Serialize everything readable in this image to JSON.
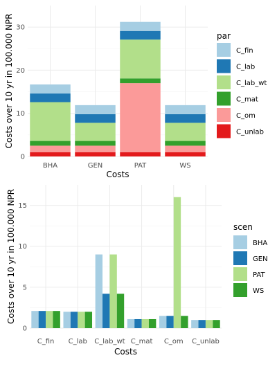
{
  "colors": {
    "C_fin": "#a6cee3",
    "C_lab": "#1f78b4",
    "C_lab_wt": "#b2df8a",
    "C_mat": "#33a02c",
    "C_om": "#fb9a99",
    "C_unlab": "#e31a1c",
    "BHA": "#a6cee3",
    "GEN": "#1f78b4",
    "PAT": "#b2df8a",
    "WS": "#33a02c"
  },
  "chart_data": [
    {
      "type": "bar",
      "stacked": true,
      "categories": [
        "BHA",
        "GEN",
        "PAT",
        "WS"
      ],
      "series": [
        {
          "name": "C_unlab",
          "values": [
            1.0,
            1.0,
            1.0,
            1.0
          ]
        },
        {
          "name": "C_om",
          "values": [
            1.5,
            1.5,
            16.0,
            1.5
          ]
        },
        {
          "name": "C_mat",
          "values": [
            1.1,
            1.1,
            1.1,
            1.1
          ]
        },
        {
          "name": "C_lab_wt",
          "values": [
            9.0,
            4.2,
            9.0,
            4.2
          ]
        },
        {
          "name": "C_lab",
          "values": [
            2.0,
            2.0,
            2.0,
            2.0
          ]
        },
        {
          "name": "C_fin",
          "values": [
            2.1,
            2.1,
            2.1,
            2.1
          ]
        }
      ],
      "xlabel": "Costs",
      "ylabel": "Costs over 10 yr in 100.000 NPR",
      "ylim": [
        0,
        35
      ],
      "yticks": [
        0,
        10,
        20,
        30
      ],
      "grid": true,
      "legend": {
        "title": "par",
        "position": "right",
        "entries": [
          "C_fin",
          "C_lab",
          "C_lab_wt",
          "C_mat",
          "C_om",
          "C_unlab"
        ]
      }
    },
    {
      "type": "bar",
      "stacked": false,
      "categories": [
        "C_fin",
        "C_lab",
        "C_lab_wt",
        "C_mat",
        "C_om",
        "C_unlab"
      ],
      "series": [
        {
          "name": "BHA",
          "values": [
            2.1,
            2.0,
            9.0,
            1.1,
            1.5,
            1.0
          ]
        },
        {
          "name": "GEN",
          "values": [
            2.1,
            2.0,
            4.2,
            1.1,
            1.5,
            1.0
          ]
        },
        {
          "name": "PAT",
          "values": [
            2.1,
            2.0,
            9.0,
            1.1,
            16.0,
            1.0
          ]
        },
        {
          "name": "WS",
          "values": [
            2.1,
            2.0,
            4.2,
            1.1,
            1.5,
            1.0
          ]
        }
      ],
      "xlabel": "Costs",
      "ylabel": "Costs over 10 yr in 100.000 NPR",
      "ylim": [
        0,
        17.5
      ],
      "yticks": [
        0,
        5,
        10,
        15
      ],
      "grid": true,
      "legend": {
        "title": "scen",
        "position": "right",
        "entries": [
          "BHA",
          "GEN",
          "PAT",
          "WS"
        ]
      }
    }
  ]
}
